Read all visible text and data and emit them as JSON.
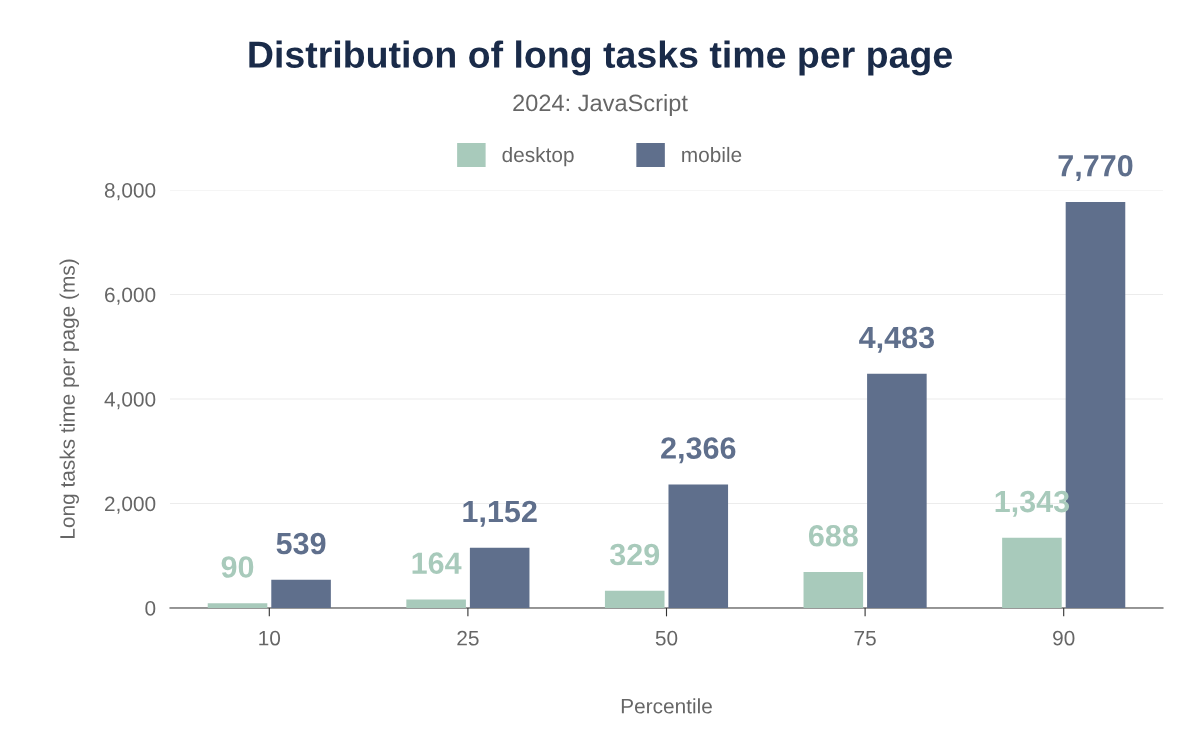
{
  "chart_data": {
    "type": "bar",
    "title": "Distribution of long tasks time per page",
    "subtitle": "2024: JavaScript",
    "xlabel": "Percentile",
    "ylabel": "Long tasks time per page (ms)",
    "categories": [
      "10",
      "25",
      "50",
      "75",
      "90"
    ],
    "series": [
      {
        "name": "desktop",
        "color": "#a8cabb",
        "values": [
          90,
          164,
          329,
          688,
          1343
        ],
        "value_labels": [
          "90",
          "164",
          "329",
          "688",
          "1,343"
        ]
      },
      {
        "name": "mobile",
        "color": "#5f6f8c",
        "values": [
          539,
          1152,
          2366,
          4483,
          7770
        ],
        "value_labels": [
          "539",
          "1,152",
          "2,366",
          "4,483",
          "7,770"
        ]
      }
    ],
    "ylim": [
      0,
      8000
    ],
    "yticks": [
      {
        "value": 0,
        "label": "0"
      },
      {
        "value": 2000,
        "label": "2,000"
      },
      {
        "value": 4000,
        "label": "4,000"
      },
      {
        "value": 6000,
        "label": "6,000"
      },
      {
        "value": 8000,
        "label": "8,000"
      }
    ],
    "grid": "y",
    "legend": "top"
  }
}
